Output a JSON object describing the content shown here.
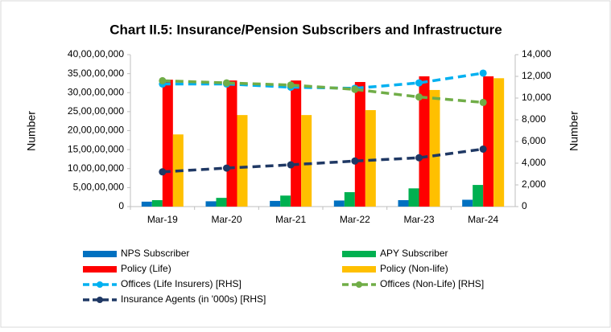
{
  "chart_data": {
    "type": "bar_line",
    "title": "Chart II.5: Insurance/Pension Subscribers and Infrastructure",
    "y_label": "Number",
    "y2_label": "Number",
    "categories": [
      "Mar-19",
      "Mar-20",
      "Mar-21",
      "Mar-22",
      "Mar-23",
      "Mar-24"
    ],
    "ylim": [
      0,
      400000000
    ],
    "yticks": [
      0,
      {
        "value": 50000000,
        "label": "5,00,00,000"
      },
      {
        "value": 100000000,
        "label": "10,00,00,000"
      },
      {
        "value": 150000000,
        "label": "15,00,00,000"
      },
      {
        "value": 200000000,
        "label": "20,00,00,000"
      },
      {
        "value": 250000000,
        "label": "25,00,00,000"
      },
      {
        "value": 300000000,
        "label": "30,00,00,000"
      },
      {
        "value": 350000000,
        "label": "35,00,00,000"
      },
      {
        "value": 400000000,
        "label": "40,00,00,000"
      }
    ],
    "y2lim": [
      0,
      14000
    ],
    "y2ticks": [
      0,
      {
        "value": 2000,
        "label": "2,000"
      },
      {
        "value": 4000,
        "label": "4,000"
      },
      {
        "value": 6000,
        "label": "6,000"
      },
      {
        "value": 8000,
        "label": "8,000"
      },
      {
        "value": 10000,
        "label": "10,000"
      },
      {
        "value": 12000,
        "label": "12,000"
      },
      {
        "value": 14000,
        "label": "14,000"
      }
    ],
    "series": [
      {
        "name": "NPS Subscriber",
        "type": "bar",
        "color": "#0070c0",
        "values": [
          13000000,
          14000000,
          15000000,
          16000000,
          17000000,
          18000000
        ]
      },
      {
        "name": "APY Subscriber",
        "type": "bar",
        "color": "#00b050",
        "values": [
          17000000,
          23000000,
          29000000,
          38000000,
          48000000,
          57000000
        ]
      },
      {
        "name": "Policy (Life)",
        "type": "bar",
        "color": "#ff0000",
        "values": [
          334000000,
          332000000,
          332000000,
          328000000,
          343000000,
          343000000
        ]
      },
      {
        "name": "Policy (Non-life)",
        "type": "bar",
        "color": "#ffc000",
        "values": [
          190000000,
          241000000,
          241000000,
          254000000,
          307000000,
          338000000
        ]
      },
      {
        "name": "Offices (Life Insurers) [RHS]",
        "type": "line",
        "axis": "y2",
        "color": "#00b0f0",
        "values": [
          11300,
          11300,
          11000,
          10900,
          11400,
          12300
        ]
      },
      {
        "name": "Offices (Non-Life) [RHS]",
        "type": "line",
        "axis": "y2",
        "color": "#70ad47",
        "values": [
          11600,
          11400,
          11200,
          10800,
          10100,
          9600
        ]
      },
      {
        "name": "Insurance Agents (in '000s) [RHS]",
        "type": "line",
        "axis": "y2",
        "color": "#1f3864",
        "values": [
          3200,
          3550,
          3850,
          4200,
          4500,
          5300
        ]
      }
    ]
  }
}
